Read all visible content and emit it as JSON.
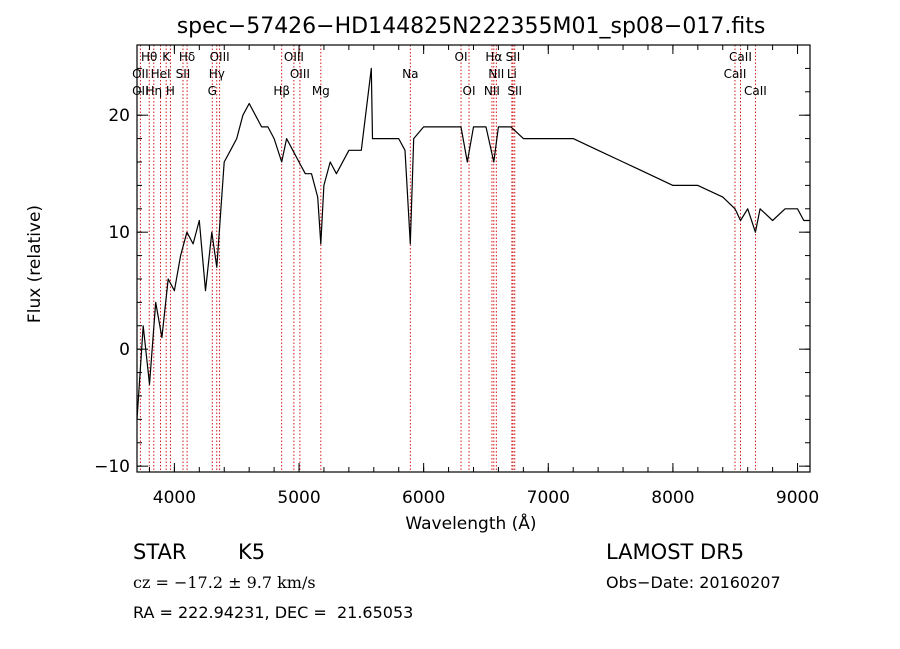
{
  "chart_data": {
    "type": "line",
    "title": "spec−57426−HD144825N222355M01_sp08−017.fits",
    "xlabel": "Wavelength (Å)",
    "ylabel": "Flux (relative)",
    "xlim": [
      3700,
      9100
    ],
    "ylim": [
      -10.5,
      26
    ],
    "xticks": [
      4000,
      5000,
      6000,
      7000,
      8000,
      9000
    ],
    "yticks": [
      -10,
      0,
      10,
      20
    ],
    "x": [
      3700,
      3750,
      3800,
      3850,
      3900,
      3950,
      4000,
      4050,
      4100,
      4150,
      4200,
      4250,
      4300,
      4340,
      4400,
      4450,
      4500,
      4550,
      4600,
      4650,
      4700,
      4750,
      4800,
      4861,
      4900,
      4950,
      5000,
      5050,
      5100,
      5150,
      5175,
      5200,
      5250,
      5300,
      5400,
      5500,
      5580,
      5590,
      5600,
      5700,
      5800,
      5850,
      5893,
      5920,
      6000,
      6100,
      6200,
      6300,
      6350,
      6400,
      6500,
      6563,
      6600,
      6650,
      6700,
      6800,
      6900,
      7000,
      7200,
      7400,
      7600,
      7800,
      8000,
      8200,
      8400,
      8498,
      8542,
      8600,
      8662,
      8700,
      8800,
      8900,
      9000,
      9050,
      9100
    ],
    "y": [
      -6,
      2,
      -3,
      4,
      1,
      6,
      5,
      8,
      10,
      9,
      11,
      5,
      10,
      7,
      16,
      17,
      18,
      20,
      21,
      20,
      19,
      19,
      18,
      16,
      18,
      17,
      16,
      15,
      15,
      13,
      9,
      14,
      16,
      15,
      17,
      17,
      24,
      18,
      18,
      18,
      18,
      17,
      9,
      18,
      19,
      19,
      19,
      19,
      16,
      19,
      19,
      16,
      19,
      19,
      19,
      18,
      18,
      18,
      18,
      17,
      16,
      15,
      14,
      14,
      13,
      12,
      11,
      12,
      10,
      12,
      11,
      12,
      12,
      11,
      11
    ],
    "spectral_lines": [
      {
        "label": "Hθ",
        "wavelength": 3798,
        "row": 0
      },
      {
        "label": "K",
        "wavelength": 3934,
        "row": 0
      },
      {
        "label": "Hδ",
        "wavelength": 4102,
        "row": 0
      },
      {
        "label": "OIII",
        "wavelength": 4363,
        "row": 0
      },
      {
        "label": "OIII",
        "wavelength": 4959,
        "row": 0
      },
      {
        "label": "OI",
        "wavelength": 6300,
        "row": 0
      },
      {
        "label": "Hα",
        "wavelength": 6563,
        "row": 0
      },
      {
        "label": "SII",
        "wavelength": 6717,
        "row": 0
      },
      {
        "label": "CaII",
        "wavelength": 8542,
        "row": 0
      },
      {
        "label": "OII",
        "wavelength": 3727,
        "row": 1
      },
      {
        "label": "HeI",
        "wavelength": 3889,
        "row": 1
      },
      {
        "label": "SII",
        "wavelength": 4069,
        "row": 1
      },
      {
        "label": "Hγ",
        "wavelength": 4340,
        "row": 1
      },
      {
        "label": "OIII",
        "wavelength": 5007,
        "row": 1
      },
      {
        "label": "Na",
        "wavelength": 5893,
        "row": 1
      },
      {
        "label": "NII",
        "wavelength": 6583,
        "row": 1
      },
      {
        "label": "Li",
        "wavelength": 6708,
        "row": 1
      },
      {
        "label": "CaII",
        "wavelength": 8498,
        "row": 1
      },
      {
        "label": "OII",
        "wavelength": 3727,
        "row": 2
      },
      {
        "label": "Hη",
        "wavelength": 3835,
        "row": 2
      },
      {
        "label": "H",
        "wavelength": 3968,
        "row": 2
      },
      {
        "label": "G",
        "wavelength": 4304,
        "row": 2
      },
      {
        "label": "Hβ",
        "wavelength": 4861,
        "row": 2
      },
      {
        "label": "Mg",
        "wavelength": 5175,
        "row": 2
      },
      {
        "label": "OI",
        "wavelength": 6364,
        "row": 2
      },
      {
        "label": "NII",
        "wavelength": 6548,
        "row": 2
      },
      {
        "label": "SII",
        "wavelength": 6731,
        "row": 2
      },
      {
        "label": "CaII",
        "wavelength": 8662,
        "row": 2
      }
    ],
    "line_color": "#000000",
    "marker_color": "#cc0000",
    "grid": false
  },
  "info": {
    "object_type": "STAR",
    "subclass": "K5",
    "survey": "LAMOST DR5",
    "redshift": "cz = −17.2 ± 9.7 km/s",
    "obs_date": "Obs−Date: 20160207",
    "coords": "RA = 222.94231, DEC =  21.65053"
  }
}
